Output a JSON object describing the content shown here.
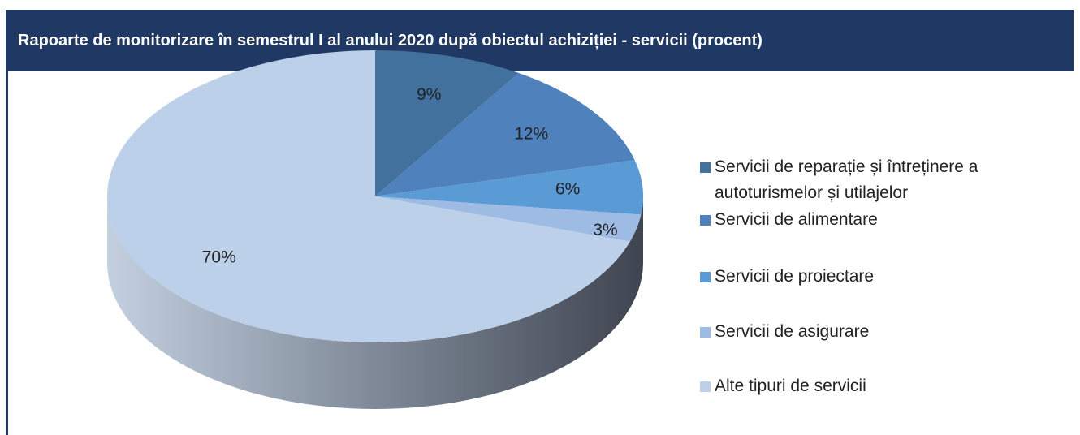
{
  "chart_data": {
    "type": "pie",
    "title": "Rapoarte de monitorizare în semestrul I al anului 2020 după obiectul achiziției - servicii (procent)",
    "categories": [
      "Servicii de reparație și întreținere a autoturismelor și utilajelor",
      "Servicii de alimentare",
      "Servicii de proiectare",
      "Servicii de asigurare",
      "Alte tipuri de servicii"
    ],
    "values": [
      9,
      12,
      6,
      3,
      70
    ],
    "value_labels": [
      "9%",
      "12%",
      "6%",
      "3%",
      "70%"
    ],
    "colors": [
      "#41719c",
      "#4f81bd",
      "#5b9bd5",
      "#9dbbe3",
      "#bdd0ea"
    ],
    "legend": "right"
  }
}
